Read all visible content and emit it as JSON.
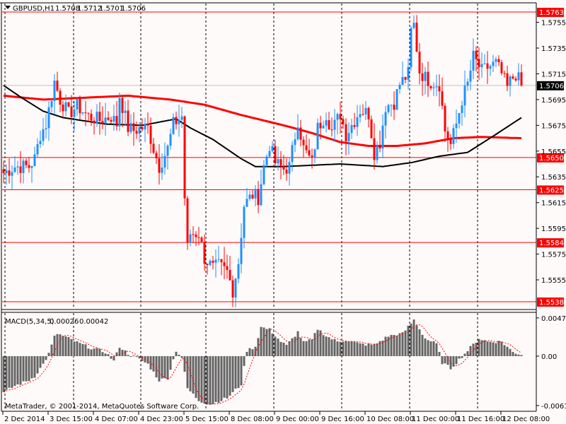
{
  "header": {
    "symbol": "GBPUSD,H1",
    "open": "1.5708",
    "high": "1.5712",
    "low": "1.5701",
    "close": "1.5706"
  },
  "footer": {
    "copyright": "MetaTrader, © 2001-2014, MetaQuotes Software Corp."
  },
  "colors": {
    "bull": "#1E90FF",
    "bear": "#FF0000",
    "ma_slow": "#FF0000",
    "ma_fast": "#000000",
    "level": "#FF0000",
    "bid_line": "#C0C0C0",
    "histogram": "#646464",
    "signal": "#FF0000",
    "background": "#FFFAFA"
  },
  "chart_data": [
    {
      "type": "candlestick",
      "title": "GBPUSD,H1",
      "ylim": [
        1.5535,
        1.5765
      ],
      "y_ticks": [
        "1.5755",
        "1.5735",
        "1.5715",
        "1.5695",
        "1.5675",
        "1.5655",
        "1.5635",
        "1.5615",
        "1.5595",
        "1.5575",
        "1.5555"
      ],
      "current_price": "1.5706",
      "levels": [
        "1.5763",
        "1.5650",
        "1.5625",
        "1.5584",
        "1.5538"
      ],
      "bar_count": 184,
      "x_labels": [
        {
          "bar": 0,
          "label": "2 Dec 2014"
        },
        {
          "bar": 16,
          "label": "3 Dec 15:00"
        },
        {
          "bar": 32,
          "label": "4 Dec 07:00"
        },
        {
          "bar": 48,
          "label": "4 Dec 23:00"
        },
        {
          "bar": 64,
          "label": "5 Dec 15:00"
        },
        {
          "bar": 80,
          "label": "8 Dec 08:00"
        },
        {
          "bar": 96,
          "label": "9 Dec 00:00"
        },
        {
          "bar": 112,
          "label": "9 Dec 16:00"
        },
        {
          "bar": 128,
          "label": "10 Dec 08:00"
        },
        {
          "bar": 144,
          "label": "11 Dec 00:00"
        },
        {
          "bar": 160,
          "label": "11 Dec 16:00"
        },
        {
          "bar": 176,
          "label": "12 Dec 08:00"
        }
      ],
      "close_keypoints": [
        [
          0,
          1.5638
        ],
        [
          4,
          1.5643
        ],
        [
          9,
          1.5643
        ],
        [
          11,
          1.5649
        ],
        [
          13,
          1.5668
        ],
        [
          15,
          1.5676
        ],
        [
          18,
          1.5709
        ],
        [
          20,
          1.5695
        ],
        [
          23,
          1.5684
        ],
        [
          26,
          1.569
        ],
        [
          30,
          1.5682
        ],
        [
          34,
          1.5679
        ],
        [
          38,
          1.5682
        ],
        [
          40,
          1.5676
        ],
        [
          41,
          1.5698
        ],
        [
          44,
          1.5673
        ],
        [
          46,
          1.5671
        ],
        [
          49,
          1.5673
        ],
        [
          51,
          1.5673
        ],
        [
          53,
          1.5657
        ],
        [
          55,
          1.5643
        ],
        [
          58,
          1.5657
        ],
        [
          60,
          1.5676
        ],
        [
          63,
          1.5682
        ],
        [
          64,
          1.5619
        ],
        [
          65,
          1.558
        ],
        [
          66,
          1.5591
        ],
        [
          69,
          1.5591
        ],
        [
          71,
          1.5572
        ],
        [
          74,
          1.5564
        ],
        [
          76,
          1.5566
        ],
        [
          79,
          1.5561
        ],
        [
          81,
          1.5547
        ],
        [
          83,
          1.5569
        ],
        [
          85,
          1.5613
        ],
        [
          88,
          1.5621
        ],
        [
          90,
          1.5619
        ],
        [
          92,
          1.5643
        ],
        [
          94,
          1.566
        ],
        [
          96,
          1.5646
        ],
        [
          99,
          1.5641
        ],
        [
          101,
          1.5643
        ],
        [
          104,
          1.5679
        ],
        [
          106,
          1.5657
        ],
        [
          109,
          1.5646
        ],
        [
          111,
          1.5673
        ],
        [
          114,
          1.5684
        ],
        [
          116,
          1.5671
        ],
        [
          119,
          1.5684
        ],
        [
          121,
          1.5668
        ],
        [
          124,
          1.5679
        ],
        [
          126,
          1.5687
        ],
        [
          129,
          1.5684
        ],
        [
          131,
          1.5654
        ],
        [
          133,
          1.5662
        ],
        [
          135,
          1.569
        ],
        [
          138,
          1.5693
        ],
        [
          140,
          1.5707
        ],
        [
          143,
          1.5715
        ],
        [
          144,
          1.5748
        ],
        [
          145,
          1.5753
        ],
        [
          147,
          1.5717
        ],
        [
          149,
          1.5712
        ],
        [
          151,
          1.5709
        ],
        [
          154,
          1.5707
        ],
        [
          156,
          1.5671
        ],
        [
          158,
          1.566
        ],
        [
          159,
          1.5668
        ],
        [
          160,
          1.5676
        ],
        [
          162,
          1.5695
        ],
        [
          164,
          1.5707
        ],
        [
          166,
          1.5728
        ],
        [
          169,
          1.5717
        ],
        [
          171,
          1.572
        ],
        [
          174,
          1.5723
        ],
        [
          176,
          1.5715
        ],
        [
          178,
          1.5704
        ],
        [
          179,
          1.5709
        ],
        [
          181,
          1.5715
        ],
        [
          183,
          1.5706
        ]
      ],
      "ma_slow_keypoints": [
        [
          0,
          1.5698
        ],
        [
          14,
          1.5695
        ],
        [
          24,
          1.5696
        ],
        [
          44,
          1.5698
        ],
        [
          59,
          1.5695
        ],
        [
          71,
          1.5691
        ],
        [
          84,
          1.5683
        ],
        [
          99,
          1.5675
        ],
        [
          109,
          1.5669
        ],
        [
          119,
          1.5662
        ],
        [
          129,
          1.5659
        ],
        [
          139,
          1.5659
        ],
        [
          149,
          1.5661
        ],
        [
          159,
          1.5665
        ],
        [
          169,
          1.5666
        ],
        [
          183,
          1.5665
        ]
      ],
      "ma_fast_keypoints": [
        [
          0,
          1.5706
        ],
        [
          6,
          1.5697
        ],
        [
          14,
          1.5686
        ],
        [
          21,
          1.5681
        ],
        [
          36,
          1.5676
        ],
        [
          49,
          1.5675
        ],
        [
          61,
          1.568
        ],
        [
          66,
          1.5673
        ],
        [
          74,
          1.5664
        ],
        [
          84,
          1.5649
        ],
        [
          89,
          1.5643
        ],
        [
          99,
          1.5643
        ],
        [
          109,
          1.5644
        ],
        [
          119,
          1.5645
        ],
        [
          134,
          1.5643
        ],
        [
          144,
          1.5646
        ],
        [
          154,
          1.5651
        ],
        [
          164,
          1.5654
        ],
        [
          174,
          1.5668
        ],
        [
          183,
          1.5681
        ]
      ]
    },
    {
      "type": "bar",
      "title": "MACD(5,34,5)",
      "main_value": "0.00026",
      "signal_value": "0.00042",
      "signal_period": 5,
      "ylim": [
        -0.00613,
        0.00475
      ],
      "y_ticks": [
        "0.00475",
        "0.00",
        "-0.00613"
      ],
      "histogram_keypoints": [
        [
          0,
          -0.0045
        ],
        [
          4,
          -0.0037
        ],
        [
          9,
          -0.003
        ],
        [
          11,
          -0.0025
        ],
        [
          14,
          -0.001
        ],
        [
          16,
          0.0003
        ],
        [
          18,
          0.0024
        ],
        [
          19,
          0.0028
        ],
        [
          23,
          0.0022
        ],
        [
          26,
          0.0017
        ],
        [
          31,
          0.001
        ],
        [
          36,
          0.0005
        ],
        [
          39,
          -0.0006
        ],
        [
          41,
          0.0012
        ],
        [
          44,
          0.0003
        ],
        [
          48,
          -0.0004
        ],
        [
          51,
          -0.001
        ],
        [
          55,
          -0.003
        ],
        [
          58,
          -0.0027
        ],
        [
          61,
          0.0007
        ],
        [
          63,
          -0.0002
        ],
        [
          65,
          -0.004
        ],
        [
          69,
          -0.0055
        ],
        [
          73,
          -0.006
        ],
        [
          79,
          -0.0052
        ],
        [
          84,
          -0.0035
        ],
        [
          86,
          0.0007
        ],
        [
          89,
          0.0012
        ],
        [
          91,
          0.0036
        ],
        [
          94,
          0.0033
        ],
        [
          98,
          0.0018
        ],
        [
          100,
          0.0013
        ],
        [
          104,
          0.003
        ],
        [
          106,
          0.0017
        ],
        [
          109,
          0.002
        ],
        [
          111,
          0.0034
        ],
        [
          114,
          0.0025
        ],
        [
          118,
          0.0018
        ],
        [
          121,
          0.002
        ],
        [
          126,
          0.0015
        ],
        [
          131,
          0.0014
        ],
        [
          136,
          0.0025
        ],
        [
          141,
          0.0028
        ],
        [
          145,
          0.0045
        ],
        [
          149,
          0.0022
        ],
        [
          153,
          0.0015
        ],
        [
          155,
          -0.0008
        ],
        [
          158,
          -0.0015
        ],
        [
          160,
          -0.0008
        ],
        [
          164,
          0.0007
        ],
        [
          168,
          0.0022
        ],
        [
          171,
          0.0018
        ],
        [
          176,
          0.0018
        ],
        [
          180,
          0.0005
        ],
        [
          183,
          0.0002
        ]
      ]
    }
  ]
}
